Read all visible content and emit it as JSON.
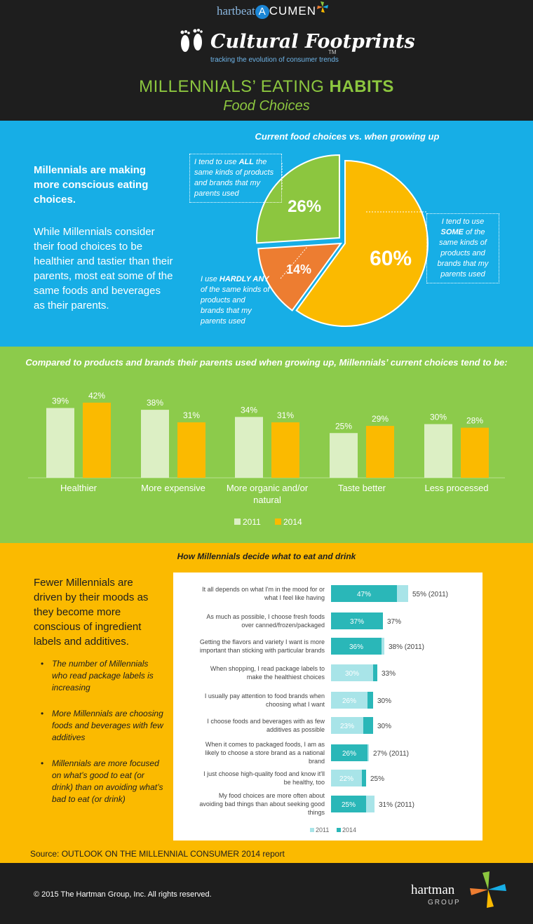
{
  "header": {
    "brand_left": "hartbeat",
    "brand_a": "A",
    "brand_right": "CUMEN",
    "series_title": "Cultural Footprints",
    "series_tm": "TM",
    "series_tagline": "tracking the evolution of consumer trends",
    "title_main": "MILLENNIALS’ EATING ",
    "title_bold": "HABITS",
    "subtitle": "Food Choices"
  },
  "section1": {
    "headline": "Millennials are making more conscious eating choices.",
    "body": "While Millennials consider their food choices to be healthier and tastier than their parents, most eat some of the same foods and beverages as their parents.",
    "pie_title": "Current food choices vs. when growing up",
    "callout_all_pre": "I tend to use ",
    "callout_all_bold": "ALL",
    "callout_all_post": " the same kinds of products and brands that my parents used",
    "callout_some_pre": "I tend to use ",
    "callout_some_bold": "SOME",
    "callout_some_post": " of the same kinds of products and brands that my parents used",
    "callout_hardly_pre": "I use ",
    "callout_hardly_bold": "HARDLY ANY",
    "callout_hardly_post": " of the same kinds of products and brands that my parents used"
  },
  "section2": {
    "title": "Compared to products and brands their parents used when growing up, Millennials’ current choices tend to be:"
  },
  "section3": {
    "title": "How Millennials decide what to eat and drink",
    "lead": "Fewer Millennials are driven by their moods as they become more conscious of ingredient labels and additives.",
    "bullets": [
      "The number of Millennials who read package labels is increasing",
      "More Millennials are choosing foods and beverages with few additives",
      "Millennials are more focused on what’s good to eat (or drink) than on avoiding what’s bad to eat (or drink)"
    ],
    "source": "Source: OUTLOOK ON THE MILLENNIAL CONSUMER 2014 report"
  },
  "footer": {
    "copyright": "© 2015 The Hartman Group, Inc. All rights reserved.",
    "company": "hartman",
    "company_sub": "GROUP"
  },
  "colors": {
    "green": "#8cc63f",
    "orange_slice": "#ed7d31",
    "yellow": "#fbba00",
    "blue": "#17aee6",
    "bar_2011": "#dcefc4",
    "bar_2014": "#fbba00",
    "hbar_2011": "#a8e4e8",
    "hbar_2014": "#2ab7b8"
  },
  "chart_data": [
    {
      "type": "pie",
      "title": "Current food choices vs. when growing up",
      "categories": [
        "ALL the same",
        "SOME of the same",
        "HARDLY ANY of the same"
      ],
      "values": [
        26,
        60,
        14
      ],
      "labels": [
        "26%",
        "60%",
        "14%"
      ]
    },
    {
      "type": "bar",
      "title": "Compared to products and brands their parents used when growing up, Millennials’ current choices tend to be:",
      "categories": [
        "Healthier",
        "More expensive",
        "More organic and/or natural",
        "Taste better",
        "Less processed"
      ],
      "series": [
        {
          "name": "2011",
          "values": [
            39,
            38,
            34,
            25,
            30
          ]
        },
        {
          "name": "2014",
          "values": [
            42,
            31,
            31,
            29,
            28
          ]
        }
      ],
      "ylim": [
        0,
        50
      ],
      "legend": "bottom-center"
    },
    {
      "type": "bar",
      "orientation": "horizontal",
      "title": "How Millennials decide what to eat and drink",
      "categories": [
        "It all depends on what I’m in the mood for or what I feel like having",
        "As much as possible, I choose fresh foods over canned/frozen/packaged",
        "Getting the flavors and variety I want is more important than sticking with particular brands",
        "When shopping, I read package labels to make the healthiest choices",
        "I usually pay attention to food brands when choosing what I want",
        "I choose foods and beverages with as few additives as possible",
        "When it comes to packaged foods, I am as likely to choose a store brand as a national brand",
        "I just choose high-quality food and know it’ll be healthy, too",
        "My food choices are more often about avoiding bad things than about seeking good things"
      ],
      "series": [
        {
          "name": "2011",
          "values": [
            55,
            37,
            38,
            30,
            26,
            23,
            27,
            22,
            31
          ]
        },
        {
          "name": "2014",
          "values": [
            47,
            37,
            36,
            33,
            30,
            30,
            26,
            25,
            25
          ]
        }
      ],
      "inner_labels": [
        "47%",
        "37%",
        "36%",
        "30%",
        "26%",
        "23%",
        "26%",
        "22%",
        "25%"
      ],
      "outer_labels": [
        "55% (2011)",
        "37%",
        "38% (2011)",
        "33%",
        "30%",
        "30%",
        "27% (2011)",
        "25%",
        "31% (2011)"
      ],
      "inner_is_2014": [
        true,
        false,
        true,
        false,
        false,
        false,
        true,
        false,
        true
      ],
      "xlim": [
        0,
        100
      ],
      "legend": "bottom-center"
    }
  ]
}
